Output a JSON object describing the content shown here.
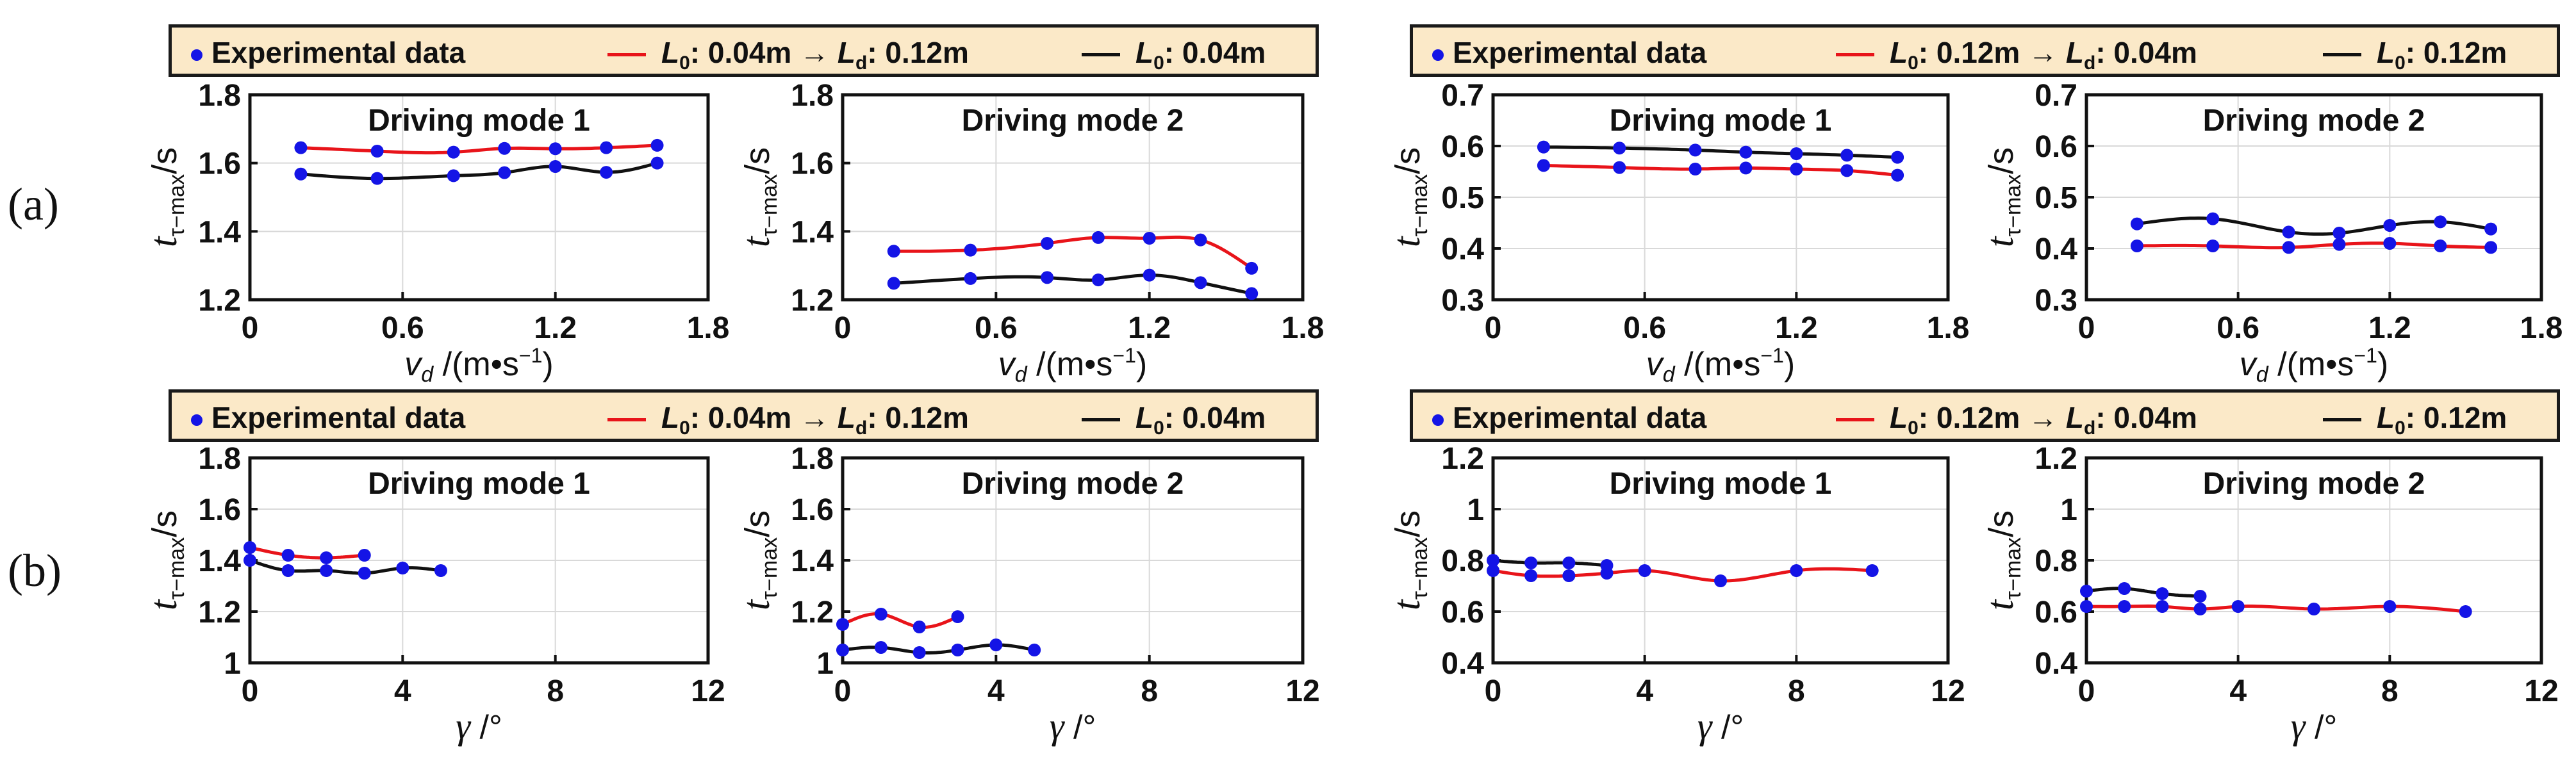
{
  "row_labels": [
    "(a)",
    "(b)"
  ],
  "legends": [
    {
      "marker_label": "Experimental data",
      "red": {
        "a": "L",
        "a_sub": "0",
        "mid": ": 0.04m ",
        "arrow": "→",
        "b": " L",
        "b_sub": "d",
        "end": ": 0.12m"
      },
      "black": {
        "a": "L",
        "a_sub": "0",
        "end": ": 0.04m"
      }
    },
    {
      "marker_label": "Experimental data",
      "red": {
        "a": "L",
        "a_sub": "0",
        "mid": ": 0.12m ",
        "arrow": "→",
        "b": " L",
        "b_sub": "d",
        "end": ": 0.04m"
      },
      "black": {
        "a": "L",
        "a_sub": "0",
        "end": ": 0.12m"
      }
    },
    {
      "marker_label": "Experimental data",
      "red": {
        "a": "L",
        "a_sub": "0",
        "mid": ": 0.04m ",
        "arrow": "→",
        "b": " L",
        "b_sub": "d",
        "end": ": 0.12m"
      },
      "black": {
        "a": "L",
        "a_sub": "0",
        "end": ": 0.04m"
      }
    },
    {
      "marker_label": "Experimental data",
      "red": {
        "a": "L",
        "a_sub": "0",
        "mid": ": 0.12m ",
        "arrow": "→",
        "b": " L",
        "b_sub": "d",
        "end": ": 0.04m"
      },
      "black": {
        "a": "L",
        "a_sub": "0",
        "end": ": 0.12m"
      }
    }
  ],
  "colors": {
    "red": "#e8141a",
    "black": "#111111",
    "marker": "#1414e6",
    "grid": "#d9d9d9",
    "legend_bg": "#fbe9c8"
  },
  "chart_data": [
    {
      "type": "line",
      "title": "Driving mode 1",
      "xlabel": "v_d /(m•s⁻¹)",
      "xlabel_kind": "v",
      "ylabel": "t_τ-max /s",
      "xlim": [
        0,
        1.8
      ],
      "ylim": [
        1.2,
        1.8
      ],
      "xticks": [
        0,
        0.6,
        1.2,
        1.8
      ],
      "xtick_labels": [
        "0",
        "0.6",
        "1.2",
        "1.8"
      ],
      "yticks": [
        1.2,
        1.4,
        1.6,
        1.8
      ],
      "ytick_labels": [
        "1.2",
        "1.4",
        "1.6",
        "1.8"
      ],
      "series": [
        {
          "name": "L0: 0.04m → Ld: 0.12m",
          "color": "red",
          "x": [
            0.2,
            0.5,
            0.8,
            1.0,
            1.2,
            1.4,
            1.6
          ],
          "y": [
            1.645,
            1.635,
            1.632,
            1.643,
            1.642,
            1.645,
            1.652
          ]
        },
        {
          "name": "L0: 0.04m",
          "color": "black",
          "x": [
            0.2,
            0.5,
            0.8,
            1.0,
            1.2,
            1.4,
            1.6
          ],
          "y": [
            1.568,
            1.555,
            1.563,
            1.572,
            1.59,
            1.573,
            1.6
          ]
        }
      ]
    },
    {
      "type": "line",
      "title": "Driving mode 2",
      "xlabel": "v_d /(m•s⁻¹)",
      "xlabel_kind": "v",
      "ylabel": "t_τ-max /s",
      "xlim": [
        0,
        1.8
      ],
      "ylim": [
        1.2,
        1.8
      ],
      "xticks": [
        0,
        0.6,
        1.2,
        1.8
      ],
      "xtick_labels": [
        "0",
        "0.6",
        "1.2",
        "1.8"
      ],
      "yticks": [
        1.2,
        1.4,
        1.6,
        1.8
      ],
      "ytick_labels": [
        "1.2",
        "1.4",
        "1.6",
        "1.8"
      ],
      "series": [
        {
          "name": "L0: 0.04m → Ld: 0.12m",
          "color": "red",
          "x": [
            0.2,
            0.5,
            0.8,
            1.0,
            1.2,
            1.4,
            1.6
          ],
          "y": [
            1.342,
            1.345,
            1.365,
            1.382,
            1.38,
            1.375,
            1.292
          ]
        },
        {
          "name": "L0: 0.04m",
          "color": "black",
          "x": [
            0.2,
            0.5,
            0.8,
            1.0,
            1.2,
            1.4,
            1.6
          ],
          "y": [
            1.248,
            1.262,
            1.265,
            1.258,
            1.272,
            1.25,
            1.218
          ]
        }
      ]
    },
    {
      "type": "line",
      "title": "Driving mode 1",
      "xlabel": "v_d /(m•s⁻¹)",
      "xlabel_kind": "v",
      "ylabel": "t_τ-max /s",
      "xlim": [
        0,
        1.8
      ],
      "ylim": [
        0.3,
        0.7
      ],
      "xticks": [
        0,
        0.6,
        1.2,
        1.8
      ],
      "xtick_labels": [
        "0",
        "0.6",
        "1.2",
        "1.8"
      ],
      "yticks": [
        0.3,
        0.4,
        0.5,
        0.6,
        0.7
      ],
      "ytick_labels": [
        "0.3",
        "0.4",
        "0.5",
        "0.6",
        "0.7"
      ],
      "series": [
        {
          "name": "L0: 0.12m → Ld: 0.04m",
          "color": "red",
          "x": [
            0.2,
            0.5,
            0.8,
            1.0,
            1.2,
            1.4,
            1.6
          ],
          "y": [
            0.562,
            0.558,
            0.555,
            0.557,
            0.555,
            0.552,
            0.543
          ]
        },
        {
          "name": "L0: 0.12m",
          "color": "black",
          "x": [
            0.2,
            0.5,
            0.8,
            1.0,
            1.2,
            1.4,
            1.6
          ],
          "y": [
            0.598,
            0.596,
            0.592,
            0.588,
            0.585,
            0.582,
            0.578
          ]
        }
      ]
    },
    {
      "type": "line",
      "title": "Driving mode 2",
      "xlabel": "v_d /(m•s⁻¹)",
      "xlabel_kind": "v",
      "ylabel": "t_τ-max /s",
      "xlim": [
        0,
        1.8
      ],
      "ylim": [
        0.3,
        0.7
      ],
      "xticks": [
        0,
        0.6,
        1.2,
        1.8
      ],
      "xtick_labels": [
        "0",
        "0.6",
        "1.2",
        "1.8"
      ],
      "yticks": [
        0.3,
        0.4,
        0.5,
        0.6,
        0.7
      ],
      "ytick_labels": [
        "0.3",
        "0.4",
        "0.5",
        "0.6",
        "0.7"
      ],
      "series": [
        {
          "name": "L0: 0.12m → Ld: 0.04m",
          "color": "red",
          "x": [
            0.2,
            0.5,
            0.8,
            1.0,
            1.2,
            1.4,
            1.6
          ],
          "y": [
            0.405,
            0.405,
            0.402,
            0.408,
            0.41,
            0.405,
            0.402
          ]
        },
        {
          "name": "L0: 0.12m",
          "color": "black",
          "x": [
            0.2,
            0.5,
            0.8,
            1.0,
            1.2,
            1.4,
            1.6
          ],
          "y": [
            0.448,
            0.458,
            0.432,
            0.43,
            0.445,
            0.452,
            0.438
          ]
        }
      ]
    },
    {
      "type": "line",
      "title": "Driving mode 1",
      "xlabel": "γ /°",
      "xlabel_kind": "g",
      "ylabel": "t_τ-max /s",
      "xlim": [
        0,
        12
      ],
      "ylim": [
        1.0,
        1.8
      ],
      "xticks": [
        0,
        4,
        8,
        12
      ],
      "xtick_labels": [
        "0",
        "4",
        "8",
        "12"
      ],
      "yticks": [
        1.0,
        1.2,
        1.4,
        1.6,
        1.8
      ],
      "ytick_labels": [
        "1",
        "1.2",
        "1.4",
        "1.6",
        "1.8"
      ],
      "series": [
        {
          "name": "L0: 0.04m → Ld: 0.12m",
          "color": "red",
          "x": [
            0,
            1,
            2,
            3
          ],
          "y": [
            1.45,
            1.42,
            1.41,
            1.42
          ]
        },
        {
          "name": "L0: 0.04m",
          "color": "black",
          "x": [
            0,
            1,
            2,
            3,
            4,
            5
          ],
          "y": [
            1.4,
            1.36,
            1.36,
            1.35,
            1.37,
            1.36
          ]
        }
      ]
    },
    {
      "type": "line",
      "title": "Driving mode 2",
      "xlabel": "γ /°",
      "xlabel_kind": "g",
      "ylabel": "t_τ-max /s",
      "xlim": [
        0,
        12
      ],
      "ylim": [
        1.0,
        1.8
      ],
      "xticks": [
        0,
        4,
        8,
        12
      ],
      "xtick_labels": [
        "0",
        "4",
        "8",
        "12"
      ],
      "yticks": [
        1.0,
        1.2,
        1.4,
        1.6,
        1.8
      ],
      "ytick_labels": [
        "1",
        "1.2",
        "1.4",
        "1.6",
        "1.8"
      ],
      "series": [
        {
          "name": "L0: 0.04m → Ld: 0.12m",
          "color": "red",
          "x": [
            0,
            1,
            2,
            3
          ],
          "y": [
            1.15,
            1.19,
            1.14,
            1.18
          ]
        },
        {
          "name": "L0: 0.04m",
          "color": "black",
          "x": [
            0,
            1,
            2,
            3,
            4,
            5
          ],
          "y": [
            1.05,
            1.06,
            1.04,
            1.05,
            1.07,
            1.05
          ]
        }
      ]
    },
    {
      "type": "line",
      "title": "Driving mode 1",
      "xlabel": "γ /°",
      "xlabel_kind": "g",
      "ylabel": "t_τ-max /s",
      "xlim": [
        0,
        12
      ],
      "ylim": [
        0.4,
        1.2
      ],
      "xticks": [
        0,
        4,
        8,
        12
      ],
      "xtick_labels": [
        "0",
        "4",
        "8",
        "12"
      ],
      "yticks": [
        0.4,
        0.6,
        0.8,
        1.0,
        1.2
      ],
      "ytick_labels": [
        "0.4",
        "0.6",
        "0.8",
        "1",
        "1.2"
      ],
      "series": [
        {
          "name": "L0: 0.12m → Ld: 0.04m",
          "color": "red",
          "x": [
            0,
            1,
            2,
            3,
            4,
            6,
            8,
            10
          ],
          "y": [
            0.76,
            0.74,
            0.74,
            0.75,
            0.76,
            0.72,
            0.76,
            0.76
          ]
        },
        {
          "name": "L0: 0.12m",
          "color": "black",
          "x": [
            0,
            1,
            2,
            3
          ],
          "y": [
            0.8,
            0.79,
            0.79,
            0.78
          ]
        }
      ]
    },
    {
      "type": "line",
      "title": "Driving mode 2",
      "xlabel": "γ /°",
      "xlabel_kind": "g",
      "ylabel": "t_τ-max /s",
      "xlim": [
        0,
        12
      ],
      "ylim": [
        0.4,
        1.2
      ],
      "xticks": [
        0,
        4,
        8,
        12
      ],
      "xtick_labels": [
        "0",
        "4",
        "8",
        "12"
      ],
      "yticks": [
        0.4,
        0.6,
        0.8,
        1.0,
        1.2
      ],
      "ytick_labels": [
        "0.4",
        "0.6",
        "0.8",
        "1",
        "1.2"
      ],
      "series": [
        {
          "name": "L0: 0.12m → Ld: 0.04m",
          "color": "red",
          "x": [
            0,
            1,
            2,
            3,
            4,
            6,
            8,
            10
          ],
          "y": [
            0.62,
            0.62,
            0.62,
            0.61,
            0.62,
            0.61,
            0.62,
            0.6
          ]
        },
        {
          "name": "L0: 0.12m",
          "color": "black",
          "x": [
            0,
            1,
            2,
            3
          ],
          "y": [
            0.68,
            0.69,
            0.67,
            0.66
          ]
        }
      ]
    }
  ]
}
